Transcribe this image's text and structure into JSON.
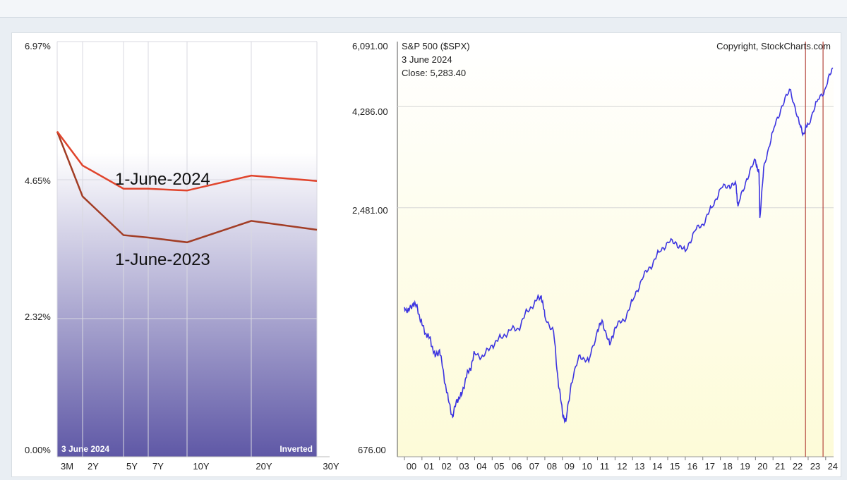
{
  "header": {
    "title_fragment": ""
  },
  "chart_data": [
    {
      "type": "line",
      "x": [
        "3M",
        "2Y",
        "5Y",
        "7Y",
        "10Y",
        "20Y",
        "30Y"
      ],
      "series": [
        {
          "name": "1-June-2024",
          "values": [
            5.46,
            4.89,
            4.5,
            4.5,
            4.47,
            4.72,
            4.63
          ]
        },
        {
          "name": "1-June-2023",
          "values": [
            5.46,
            4.37,
            3.72,
            3.68,
            3.6,
            3.96,
            3.81
          ]
        }
      ],
      "ytick_labels": [
        "6.97%",
        "4.65%",
        "2.32%",
        "0.00%"
      ],
      "ylim": [
        0,
        6.97
      ],
      "annotations": {
        "date": "3  June 2024",
        "state": "Inverted"
      },
      "grid": true
    },
    {
      "type": "line",
      "title": "S&P 500 ($SPX)",
      "subtitle": "3  June 2024",
      "close_label": "Close: 5,283.40",
      "copyright": "Copyright, StockCharts.com",
      "scale": "log",
      "ytick_labels": [
        "6,091.00",
        "4,286.00",
        "2,481.00",
        "676.00"
      ],
      "x_tick_labels": [
        "00",
        "01",
        "02",
        "03",
        "04",
        "05",
        "06",
        "07",
        "08",
        "09",
        "10",
        "11",
        "12",
        "13",
        "14",
        "15",
        "16",
        "17",
        "18",
        "19",
        "20",
        "21",
        "22",
        "23",
        "24"
      ],
      "x": [
        2000,
        2000.25,
        2000.5,
        2000.75,
        2001,
        2001.25,
        2001.5,
        2001.75,
        2002,
        2002.25,
        2002.5,
        2002.75,
        2003,
        2003.25,
        2003.5,
        2003.75,
        2004,
        2004.5,
        2005,
        2005.5,
        2006,
        2006.5,
        2007,
        2007.5,
        2007.8,
        2008,
        2008.5,
        2008.75,
        2009,
        2009.2,
        2009.5,
        2010,
        2010.5,
        2011,
        2011.3,
        2011.7,
        2012,
        2012.5,
        2013,
        2013.5,
        2014,
        2014.5,
        2015,
        2015.5,
        2016,
        2016.5,
        2017,
        2017.5,
        2018,
        2018.5,
        2018.9,
        2019,
        2019.5,
        2020,
        2020.2,
        2020.25,
        2020.5,
        2021,
        2021.5,
        2022,
        2022.5,
        2022.75,
        2023,
        2023.5,
        2024,
        2024.4
      ],
      "values": [
        1450,
        1420,
        1480,
        1440,
        1320,
        1250,
        1210,
        1110,
        1150,
        1000,
        880,
        800,
        880,
        900,
        990,
        1040,
        1130,
        1110,
        1180,
        1230,
        1280,
        1290,
        1420,
        1500,
        1540,
        1380,
        1270,
        980,
        820,
        780,
        960,
        1120,
        1080,
        1280,
        1340,
        1180,
        1300,
        1350,
        1500,
        1680,
        1800,
        1950,
        2060,
        2050,
        1960,
        2180,
        2270,
        2480,
        2750,
        2800,
        2800,
        2500,
        2900,
        3210,
        3000,
        2350,
        3150,
        3750,
        4300,
        4700,
        3900,
        3700,
        3900,
        4400,
        4750,
        5283.4
      ],
      "ylim": [
        676,
        6091
      ],
      "vlines_x": [
        2022.85,
        2023.85
      ],
      "grid": true
    }
  ]
}
